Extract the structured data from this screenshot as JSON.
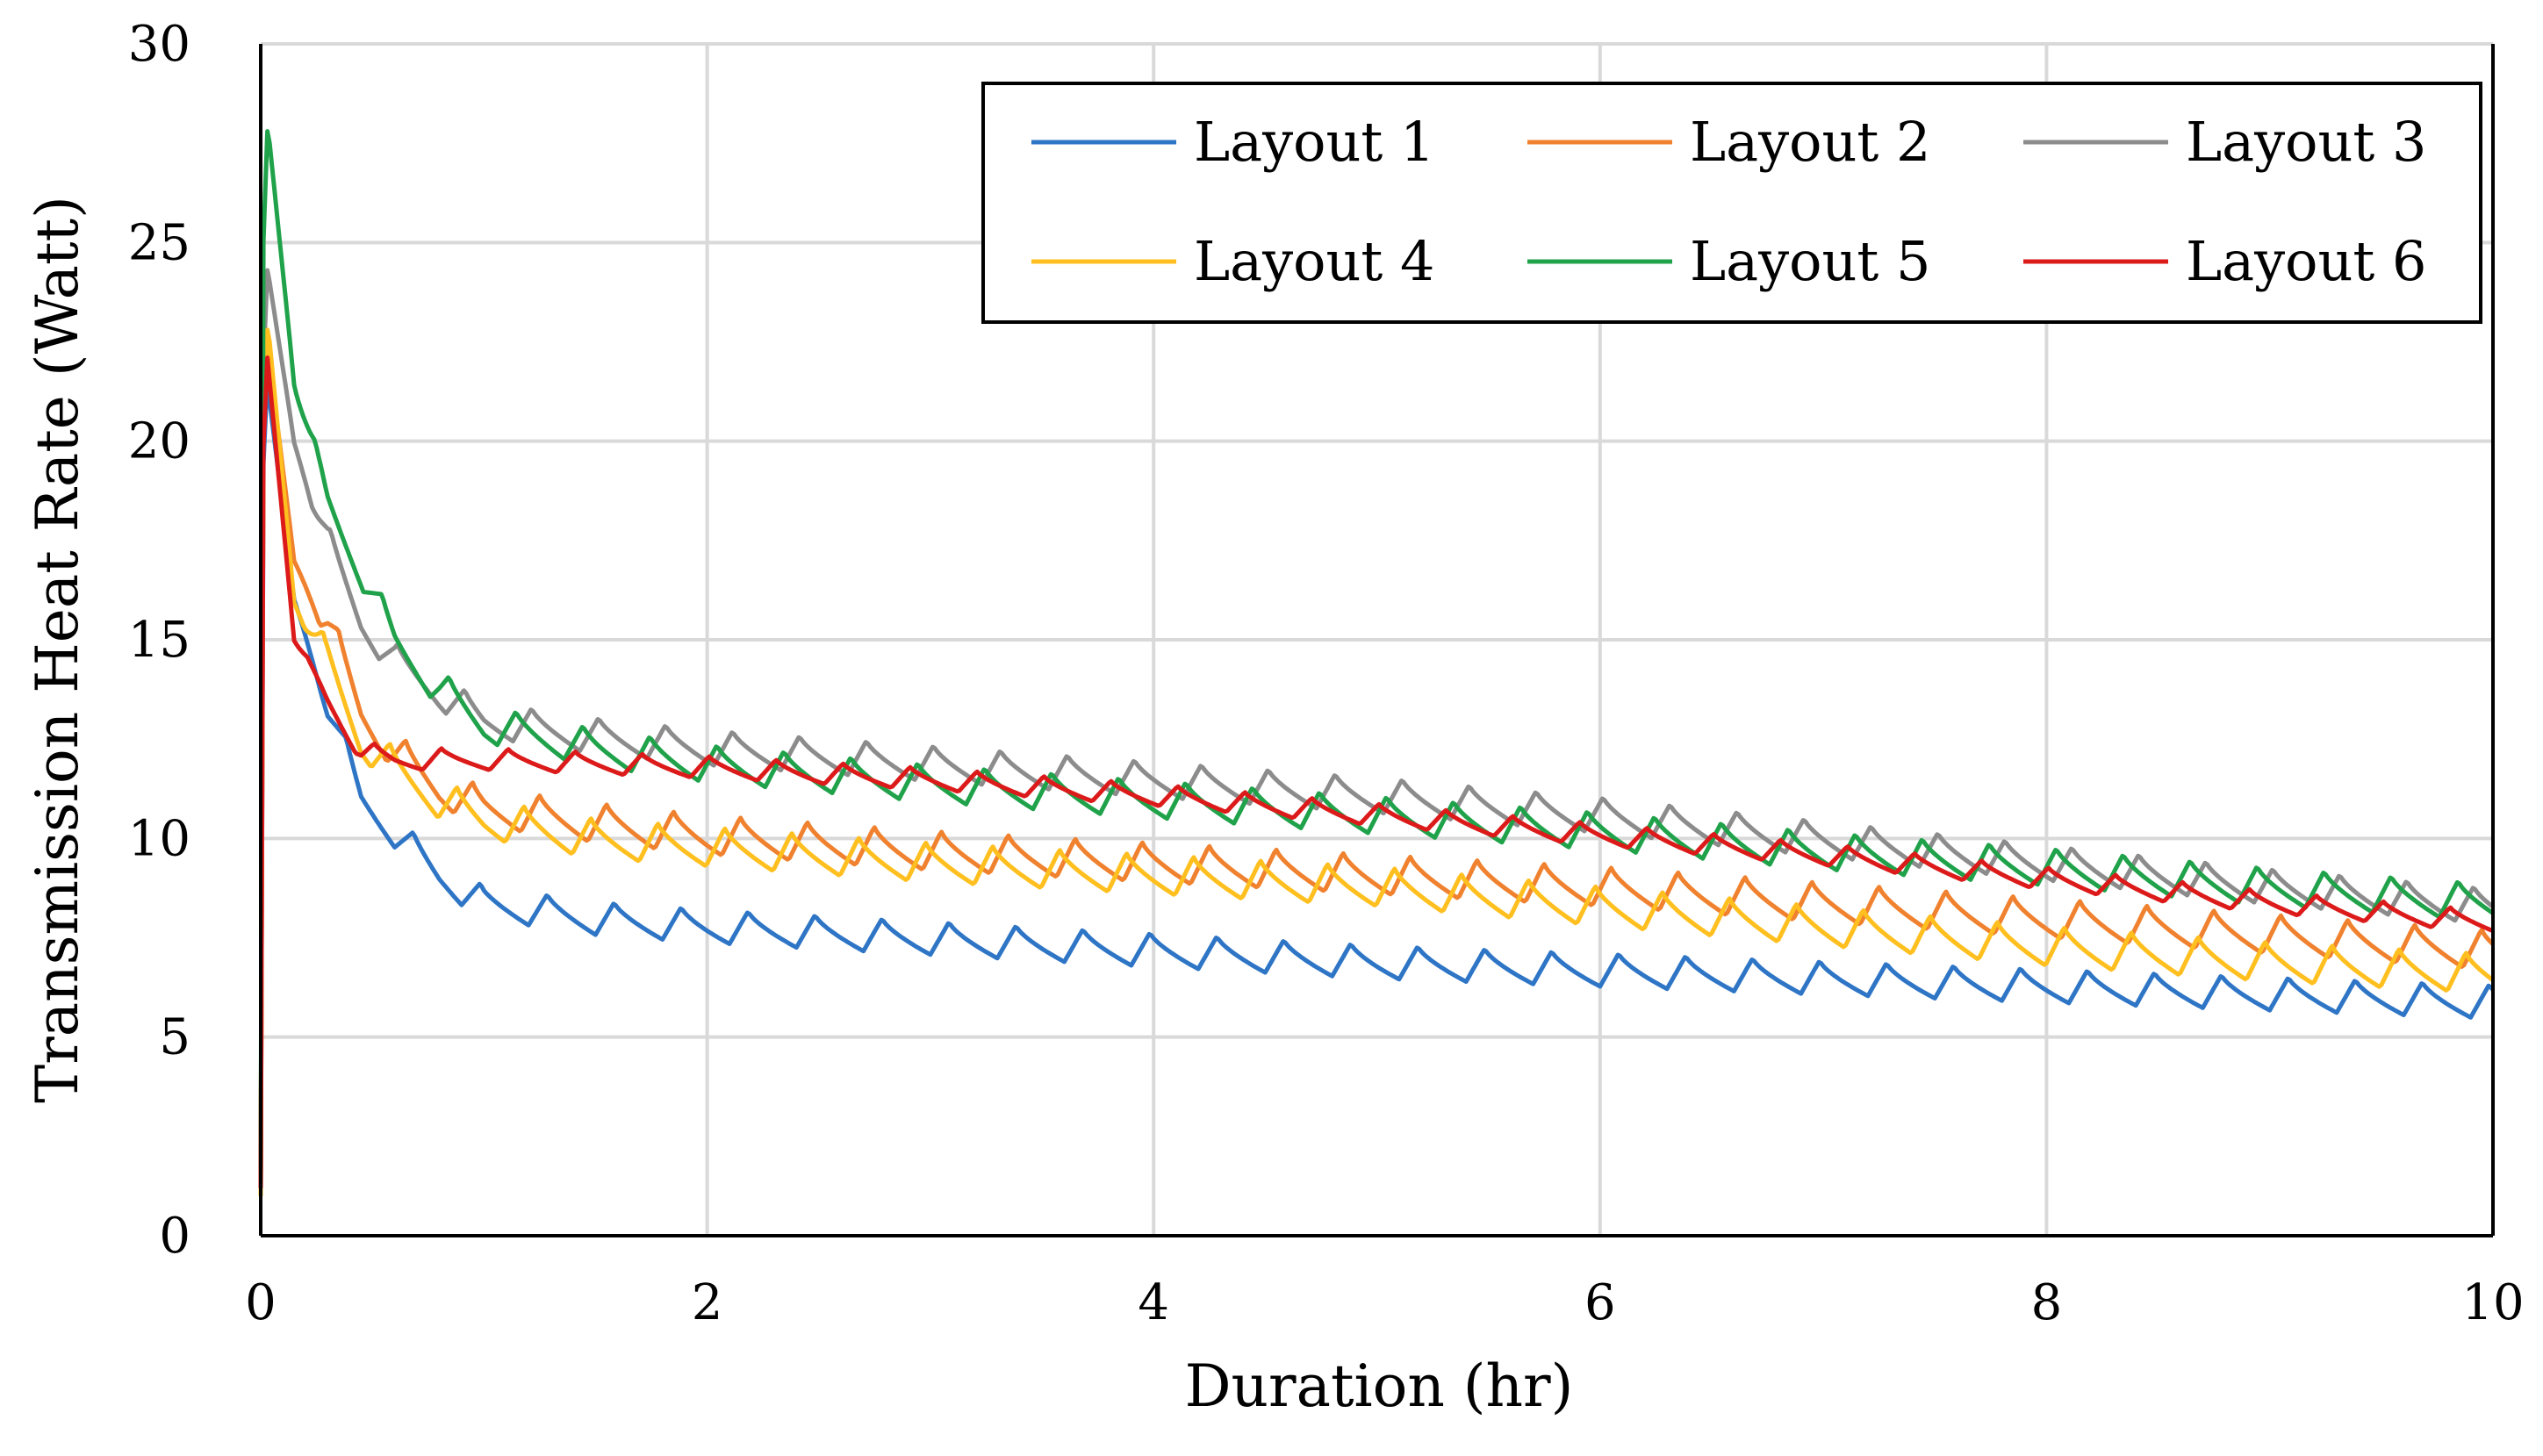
{
  "chart_data": {
    "type": "line",
    "title": "",
    "xlabel": "Duration (hr)",
    "ylabel": "Transmission Heat Rate (Watt)",
    "xlim": [
      0,
      10
    ],
    "ylim": [
      0,
      30
    ],
    "xticks": [
      0,
      2,
      4,
      6,
      8,
      10
    ],
    "yticks": [
      0,
      5,
      10,
      15,
      20,
      25,
      30
    ],
    "xtick_labels": [
      "0",
      "2",
      "4",
      "6",
      "8",
      "10"
    ],
    "ytick_labels": [
      "0",
      "5",
      "10",
      "15",
      "20",
      "25",
      "30"
    ],
    "grid": true,
    "legend_position": "top-right",
    "sawtooth_period_hr": 0.3,
    "series": [
      {
        "name": "Layout 1",
        "color": "#2E75C6",
        "start": 1.0,
        "peak": 21.6,
        "amplitude": 0.85,
        "x": [
          0.04,
          0.15,
          0.3,
          0.45,
          0.6,
          0.8,
          1.0,
          1.5,
          2,
          3,
          4,
          5,
          6,
          7,
          8,
          9,
          10
        ],
        "y": [
          21.0,
          16.0,
          13.5,
          11.0,
          10.2,
          9.1,
          8.4,
          8.0,
          7.8,
          7.5,
          7.2,
          6.9,
          6.7,
          6.5,
          6.3,
          6.1,
          5.9
        ]
      },
      {
        "name": "Layout 2",
        "color": "#F0812E",
        "start": 1.0,
        "peak": 22.6,
        "amplitude": 1.0,
        "x": [
          0.04,
          0.15,
          0.3,
          0.45,
          0.6,
          0.8,
          1.0,
          1.5,
          2,
          3,
          4,
          5,
          6,
          7,
          8,
          9,
          10
        ],
        "y": [
          22.0,
          17.0,
          15.5,
          13.2,
          12.2,
          11.3,
          10.8,
          10.4,
          10.1,
          9.7,
          9.4,
          9.1,
          8.8,
          8.4,
          8.0,
          7.6,
          7.2
        ]
      },
      {
        "name": "Layout 3",
        "color": "#8C8C8C",
        "start": 1.2,
        "peak": 24.3,
        "amplitude": 0.9,
        "x": [
          0.04,
          0.15,
          0.3,
          0.45,
          0.6,
          0.8,
          1.0,
          1.5,
          2,
          3,
          4,
          5,
          6,
          7,
          8,
          9,
          10
        ],
        "y": [
          24.0,
          20.0,
          17.5,
          15.5,
          14.5,
          13.7,
          13.0,
          12.6,
          12.3,
          11.9,
          11.5,
          11.1,
          10.6,
          10.0,
          9.4,
          8.8,
          8.3
        ]
      },
      {
        "name": "Layout 4",
        "color": "#FFBF1F",
        "start": 1.0,
        "peak": 22.8,
        "amplitude": 1.0,
        "x": [
          0.04,
          0.15,
          0.3,
          0.45,
          0.6,
          0.8,
          1.0,
          1.5,
          2,
          3,
          4,
          5,
          6,
          7,
          8,
          9,
          10
        ],
        "y": [
          22.5,
          16.0,
          14.5,
          12.5,
          11.8,
          11.0,
          10.5,
          10.0,
          9.8,
          9.4,
          9.1,
          8.8,
          8.3,
          7.8,
          7.3,
          6.9,
          6.6
        ]
      },
      {
        "name": "Layout 5",
        "color": "#1FA24A",
        "start": 1.5,
        "peak": 27.8,
        "amplitude": 0.95,
        "x": [
          0.04,
          0.15,
          0.3,
          0.45,
          0.6,
          0.8,
          1.0,
          1.5,
          2,
          3,
          4,
          5,
          6,
          7,
          8,
          9,
          10
        ],
        "y": [
          27.5,
          21.5,
          18.5,
          16.8,
          15.0,
          13.8,
          12.9,
          12.3,
          11.9,
          11.4,
          11.0,
          10.6,
          10.2,
          9.7,
          9.3,
          8.8,
          8.4
        ]
      },
      {
        "name": "Layout 6",
        "color": "#DC1A1A",
        "start": 1.2,
        "peak": 22.1,
        "amplitude": 0.55,
        "x": [
          0.04,
          0.15,
          0.3,
          0.45,
          0.6,
          0.8,
          1.0,
          1.5,
          2,
          3,
          4,
          5,
          6,
          7,
          8,
          9,
          10
        ],
        "y": [
          21.5,
          15.0,
          13.5,
          12.2,
          12.0,
          12.0,
          12.0,
          11.9,
          11.8,
          11.5,
          11.1,
          10.6,
          10.1,
          9.6,
          9.0,
          8.4,
          7.9
        ]
      }
    ]
  }
}
